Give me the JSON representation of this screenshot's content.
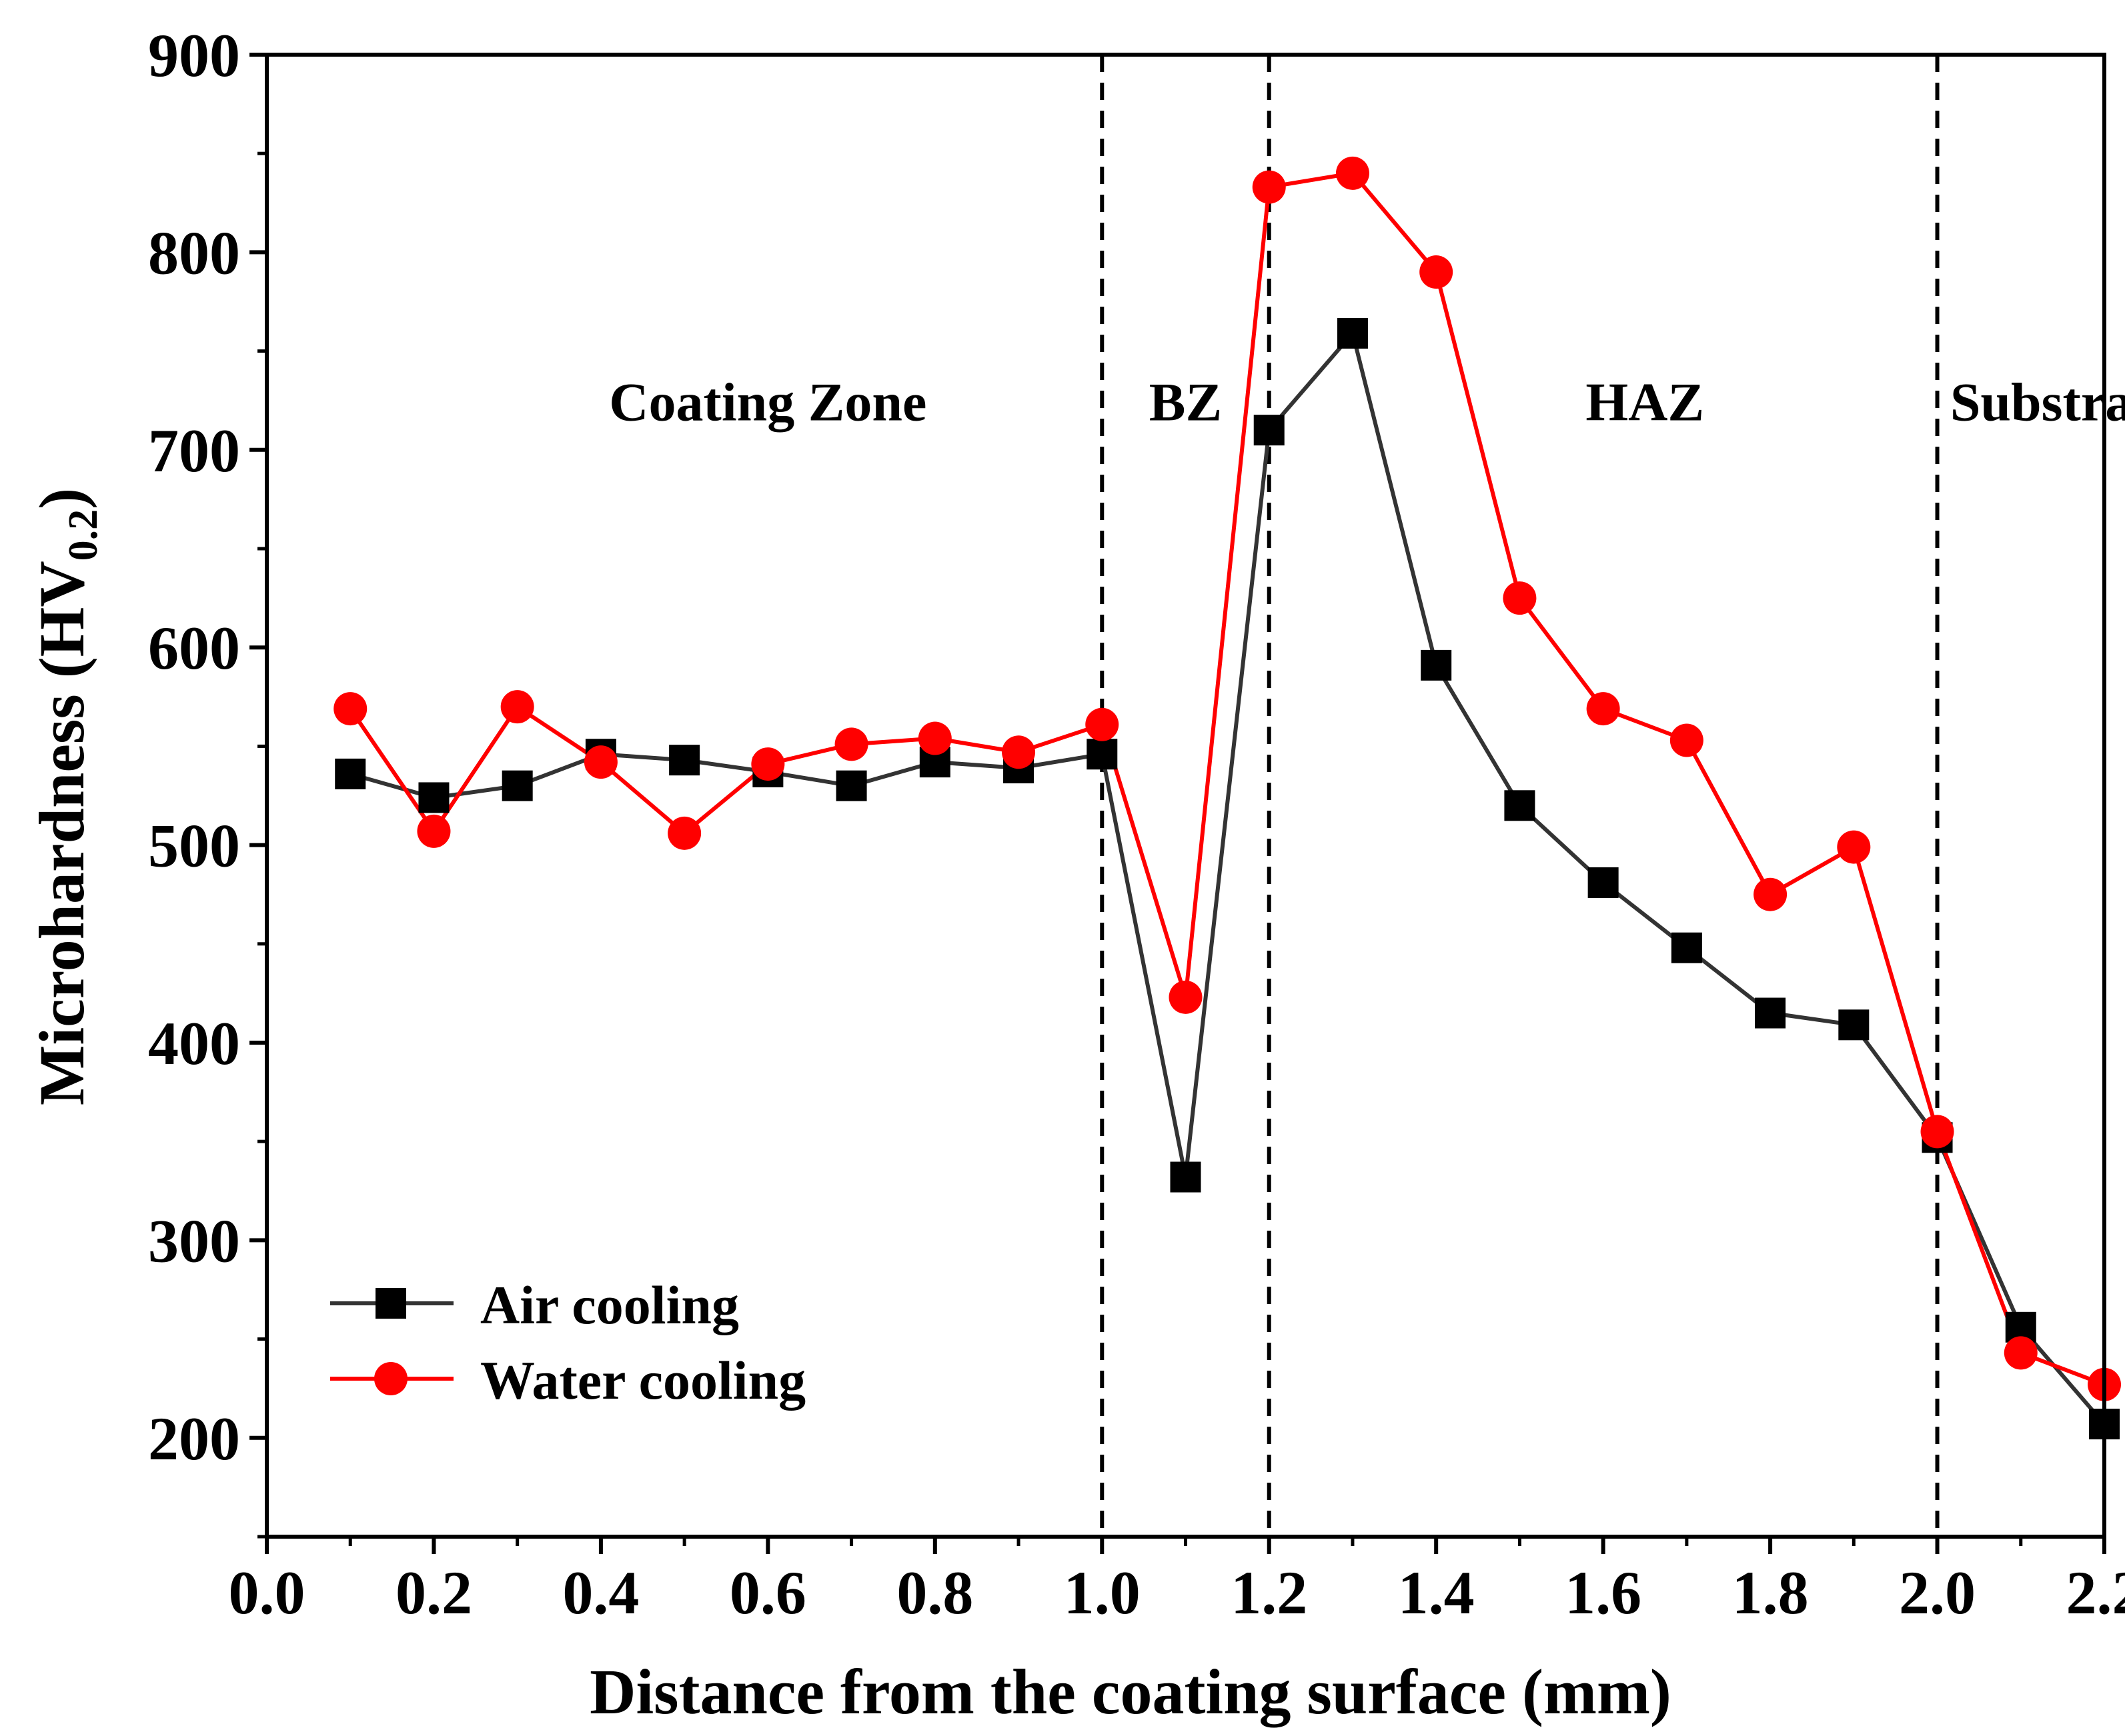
{
  "chart_data": {
    "type": "line",
    "title": "",
    "xlabel": "Distance from the coating surface (mm)",
    "ylabel_main": "Microhardness (HV",
    "ylabel_sub": "0.2",
    "ylabel_close": ")",
    "xlim": [
      0.0,
      2.2
    ],
    "ylim": [
      150,
      900
    ],
    "x_ticks": [
      0.0,
      0.2,
      0.4,
      0.6,
      0.8,
      1.0,
      1.2,
      1.4,
      1.6,
      1.8,
      2.0,
      2.2
    ],
    "x_tick_labels": [
      "0.0",
      "0.2",
      "0.4",
      "0.6",
      "0.8",
      "1.0",
      "1.2",
      "1.4",
      "1.6",
      "1.8",
      "2.0",
      "2.2"
    ],
    "y_ticks": [
      200,
      300,
      400,
      500,
      600,
      700,
      800,
      900
    ],
    "y_tick_labels": [
      "200",
      "300",
      "400",
      "500",
      "600",
      "700",
      "800",
      "900"
    ],
    "grid": false,
    "legend_position": "bottom-left",
    "x": [
      0.1,
      0.2,
      0.3,
      0.4,
      0.5,
      0.6,
      0.7,
      0.8,
      0.9,
      1.0,
      1.1,
      1.2,
      1.3,
      1.4,
      1.5,
      1.6,
      1.7,
      1.8,
      1.9,
      2.0,
      2.1,
      2.2
    ],
    "series": [
      {
        "name": "Air cooling",
        "color": "#000000",
        "line_color": "#333333",
        "marker": "square",
        "values": [
          536,
          524,
          530,
          546,
          543,
          537,
          530,
          542,
          539,
          546,
          332,
          710,
          759,
          591,
          520,
          481,
          448,
          415,
          409,
          352,
          256,
          207
        ]
      },
      {
        "name": "Water cooling",
        "color": "#ff0000",
        "line_color": "#ff0000",
        "marker": "circle",
        "values": [
          569,
          507,
          570,
          542,
          506,
          541,
          551,
          554,
          547,
          561,
          423,
          833,
          840,
          790,
          625,
          569,
          553,
          475,
          499,
          355,
          243,
          227
        ]
      }
    ],
    "zone_dividers": [
      1.0,
      1.2,
      2.0
    ],
    "zones": [
      {
        "label": "Coating Zone",
        "x_center": 0.6,
        "y": 725
      },
      {
        "label": "BZ",
        "x_center": 1.1,
        "y": 725
      },
      {
        "label": "HAZ",
        "x_center": 1.65,
        "y": 725
      },
      {
        "label": "Substrate",
        "x_center": 2.15,
        "y": 725
      }
    ]
  }
}
